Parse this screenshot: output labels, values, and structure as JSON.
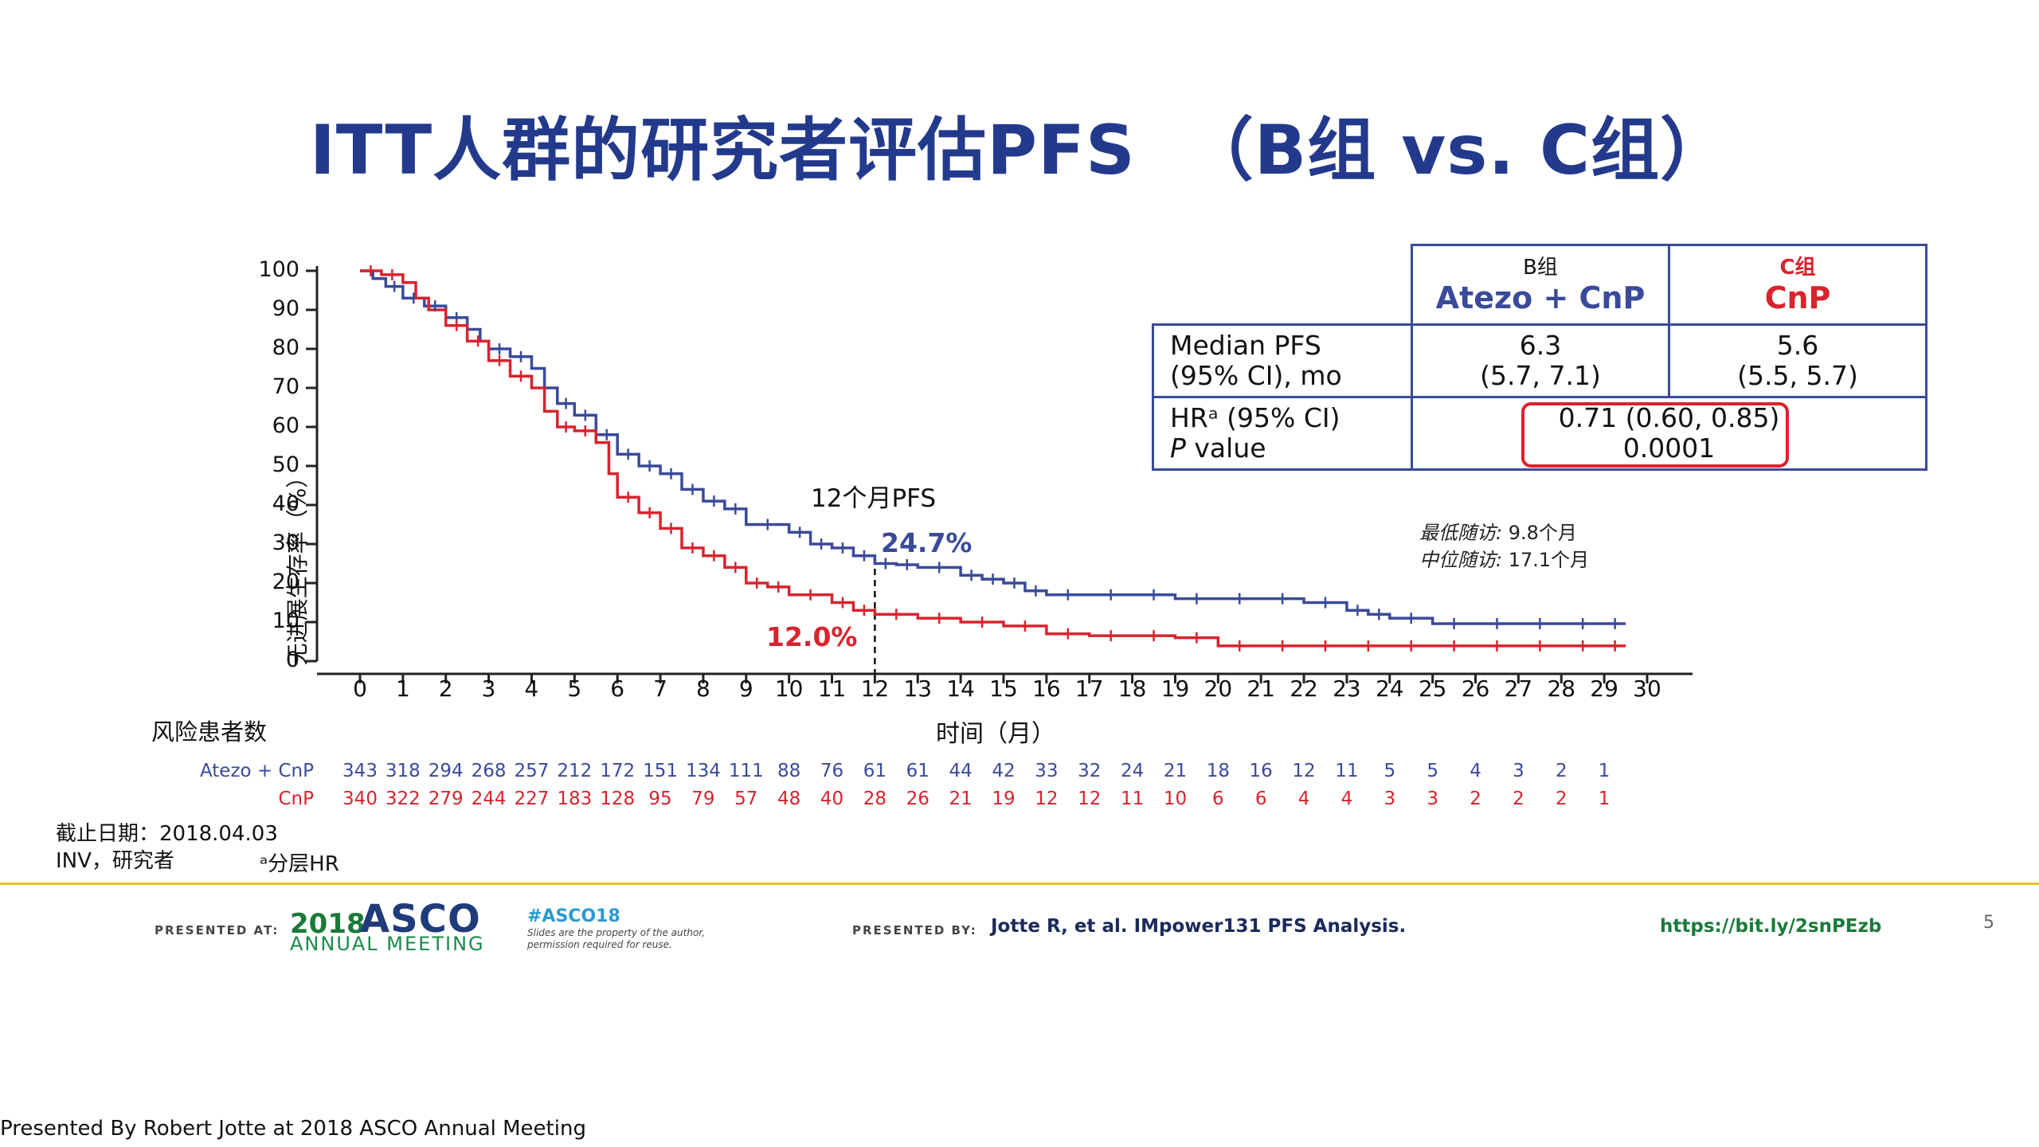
{
  "slide": {
    "title": "ITT人群的研究者评估PFS  （B组 vs. C组）",
    "page_number": "5"
  },
  "colors": {
    "title": "#233a8c",
    "atezo": "#3a4a9a",
    "cnp": "#d9232d",
    "footer_rule": "#f0c020"
  },
  "chart_data": {
    "type": "line",
    "subtype": "kaplan-meier",
    "ylabel": "无进展生存率（%）",
    "xlabel": "时间（月）",
    "ylim": [
      0,
      100
    ],
    "xlim": [
      0,
      30
    ],
    "yticks": [
      0,
      10,
      20,
      30,
      40,
      50,
      60,
      70,
      80,
      90,
      100
    ],
    "xticks": [
      0,
      1,
      2,
      3,
      4,
      5,
      6,
      7,
      8,
      9,
      10,
      11,
      12,
      13,
      14,
      15,
      16,
      17,
      18,
      19,
      20,
      21,
      22,
      23,
      24,
      25,
      26,
      27,
      28,
      29,
      30
    ],
    "series": [
      {
        "name": "Atezo + CnP",
        "color": "#3a4a9a",
        "x": [
          0,
          0.3,
          0.6,
          1.0,
          1.5,
          2.0,
          2.5,
          2.8,
          3.0,
          3.5,
          4.0,
          4.3,
          4.6,
          5.0,
          5.5,
          6.0,
          6.5,
          7.0,
          7.5,
          8.0,
          8.5,
          9.0,
          10.0,
          10.5,
          11.0,
          11.5,
          12.0,
          12.5,
          13.0,
          14.0,
          14.5,
          15.0,
          15.5,
          16.0,
          17.0,
          18.0,
          19.0,
          20.0,
          21.0,
          22.0,
          23.0,
          23.5,
          24.0,
          25.0,
          26.0,
          27.0,
          28.0,
          29.0,
          29.5
        ],
        "values": [
          100,
          98,
          96,
          93,
          91,
          88,
          85,
          82,
          80,
          78,
          75,
          70,
          66,
          63,
          58,
          53,
          50,
          48,
          44,
          41,
          39,
          35,
          33,
          30,
          29,
          27,
          25,
          24.7,
          24,
          22,
          21,
          20,
          18,
          17,
          17,
          17,
          16,
          16,
          16,
          15,
          13,
          12,
          11,
          9.6,
          9.6,
          9.6,
          9.6,
          9.6,
          9.6
        ]
      },
      {
        "name": "CnP",
        "color": "#d9232d",
        "x": [
          0,
          0.5,
          1.0,
          1.3,
          1.6,
          2.0,
          2.5,
          3.0,
          3.5,
          4.0,
          4.3,
          4.6,
          5.0,
          5.5,
          5.8,
          6.0,
          6.5,
          7.0,
          7.5,
          8.0,
          8.5,
          9.0,
          9.5,
          10.0,
          11.0,
          11.5,
          12.0,
          13.0,
          14.0,
          15.0,
          16.0,
          17.0,
          18.0,
          19.0,
          20.0,
          21.0,
          22.0,
          23.0,
          24.0,
          25.0,
          26.0,
          27.0,
          28.0,
          29.0,
          29.5
        ],
        "values": [
          100,
          99,
          97,
          93,
          90,
          86,
          82,
          77,
          73,
          70,
          64,
          60,
          59,
          56,
          48,
          42,
          38,
          34,
          29,
          27,
          24,
          20,
          19,
          17,
          15,
          13,
          12,
          11,
          10,
          9,
          7,
          6.5,
          6.5,
          6,
          3.9,
          3.9,
          3.9,
          3.9,
          3.9,
          3.9,
          3.9,
          3.9,
          3.9,
          3.9,
          3.9
        ]
      }
    ],
    "annotations": {
      "pfs12_label": "12个月PFS",
      "pfs12_month": 12,
      "atezo_12mo": "24.7%",
      "cnp_12mo": "12.0%",
      "followup_min_label": "最低随访:",
      "followup_min_value": "9.8个月",
      "followup_median_label": "中位随访:",
      "followup_median_value": "17.1个月"
    }
  },
  "summary_table": {
    "col_b_arm": "B组",
    "col_b_name": "Atezo + CnP",
    "col_c_arm": "C组",
    "col_c_name": "CnP",
    "row1_label_line1": "Median PFS",
    "row1_label_line2": "(95% CI), mo",
    "row1_b_line1": "6.3",
    "row1_b_line2": "(5.7, 7.1)",
    "row1_c_line1": "5.6",
    "row1_c_line2": "(5.5, 5.7)",
    "row2_label_line1": "HRᵃ (95% CI)",
    "row2_label_p": "P",
    "row2_label_value": " value",
    "row2_val_line1": "0.71 (0.60, 0.85)",
    "row2_val_line2": "0.0001"
  },
  "risk_table": {
    "title": "风险患者数",
    "rows": [
      {
        "name": "Atezo + CnP",
        "color": "#3a4a9a",
        "values": [
          "343",
          "318",
          "294",
          "268",
          "257",
          "212",
          "172",
          "151",
          "134",
          "111",
          "88",
          "76",
          "61",
          "61",
          "44",
          "42",
          "33",
          "32",
          "24",
          "21",
          "18",
          "16",
          "12",
          "11",
          "5",
          "5",
          "4",
          "3",
          "2",
          "1"
        ]
      },
      {
        "name": "CnP",
        "color": "#d9232d",
        "values": [
          "340",
          "322",
          "279",
          "244",
          "227",
          "183",
          "128",
          "95",
          "79",
          "57",
          "48",
          "40",
          "28",
          "26",
          "21",
          "19",
          "12",
          "12",
          "11",
          "10",
          "6",
          "6",
          "4",
          "4",
          "3",
          "3",
          "2",
          "2",
          "2",
          "1"
        ]
      }
    ]
  },
  "notes": {
    "cutoff": "截止日期：2018.04.03",
    "inv": "INV，研究者",
    "hr_note": "ᵃ分层HR"
  },
  "footer": {
    "presented_at": "PRESENTED AT:",
    "asco_year": "2018",
    "asco_word": "ASCO",
    "asco_meeting": "ANNUAL MEETING",
    "hashtag": "#ASCO18",
    "slides_note": "Slides are the property of the author, permission required for reuse.",
    "presented_by": "PRESENTED BY:",
    "citation": "Jotte R, et al. IMpower131 PFS Analysis.",
    "url": "https://bit.ly/2snPEzb",
    "bottom_credit": "Presented By Robert Jotte at 2018 ASCO Annual Meeting"
  }
}
